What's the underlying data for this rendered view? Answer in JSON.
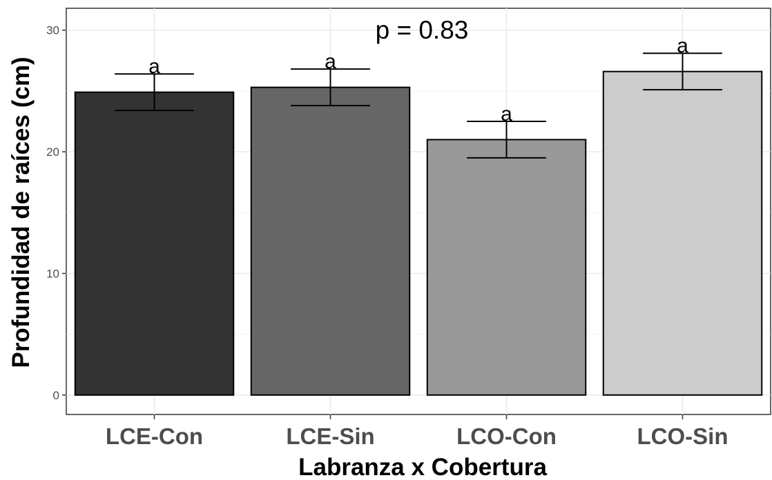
{
  "chart_data": {
    "type": "bar",
    "categories": [
      "LCE-Con",
      "LCE-Sin",
      "LCO-Con",
      "LCO-Sin"
    ],
    "values": [
      24.9,
      25.3,
      21.0,
      26.6
    ],
    "errors": [
      1.5,
      1.5,
      1.5,
      1.5
    ],
    "significance_letters": [
      "a",
      "a",
      "a",
      "a"
    ],
    "bar_colors": [
      "#333333",
      "#666666",
      "#999999",
      "#cccccc"
    ],
    "annotation": "p = 0.83",
    "xlabel": "Labranza x Cobertura",
    "ylabel": "Profundidad de raíces (cm)",
    "ylim": [
      -1.6,
      31.8
    ],
    "yticks": [
      0,
      10,
      20,
      30
    ],
    "grid": true
  }
}
